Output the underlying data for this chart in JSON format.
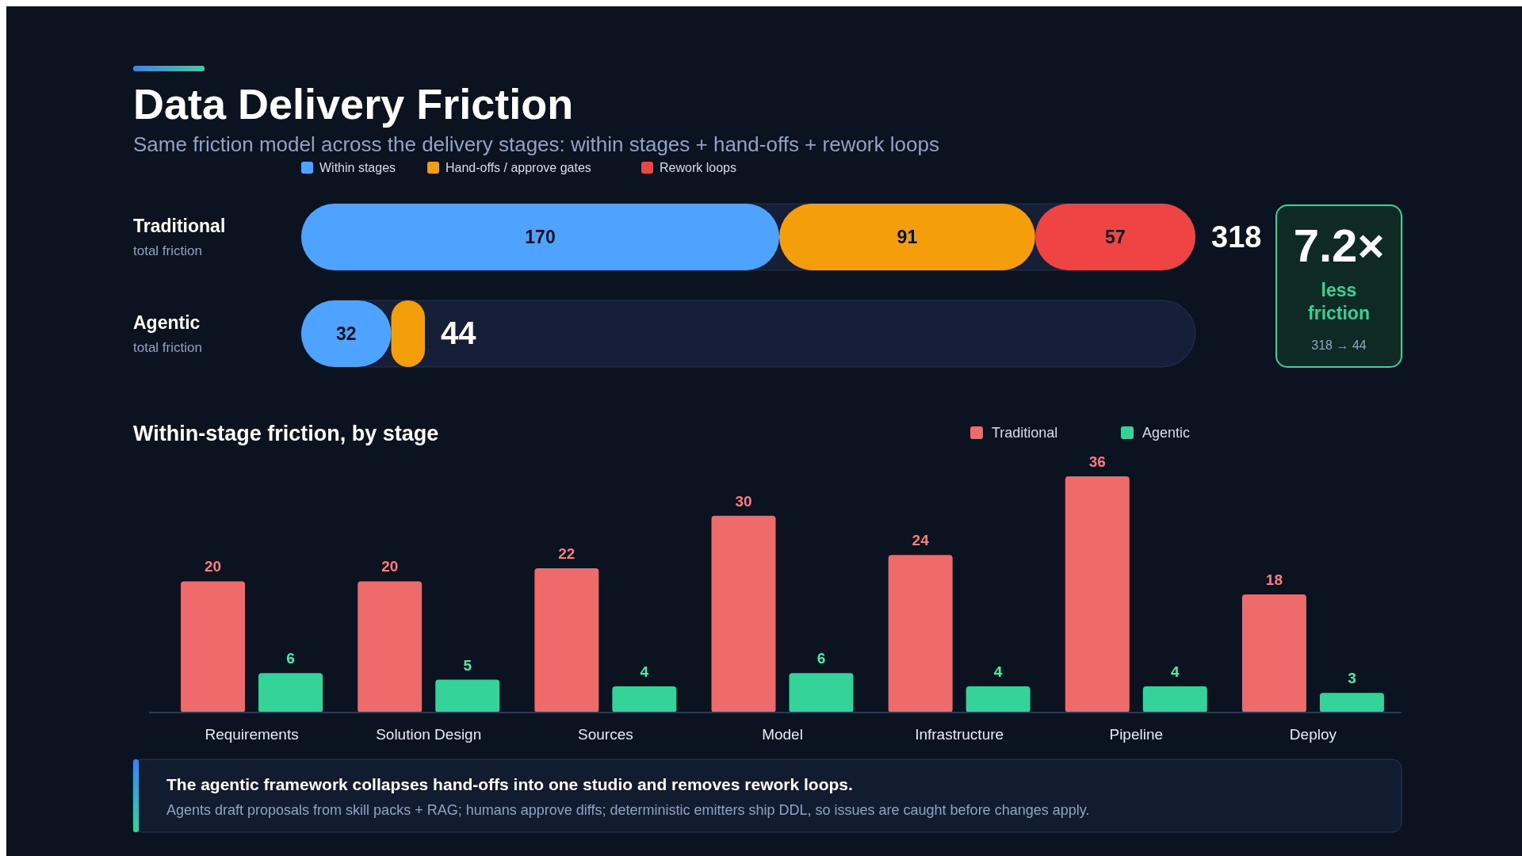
{
  "chart_data": [
    {
      "type": "bar",
      "orientation": "horizontal",
      "stacked": true,
      "title": "Data Delivery Friction",
      "subtitle": "Same friction model across the delivery stages: within stages + hand-offs + rework loops",
      "categories": [
        "Traditional",
        "Agentic"
      ],
      "series": [
        {
          "name": "Within stages",
          "color": "#4da3ff",
          "values": [
            170,
            32
          ],
          "value_labels": [
            "170",
            "32"
          ]
        },
        {
          "name": "Hand-offs / approve gates",
          "color": "#f59e0b",
          "values": [
            91,
            12
          ],
          "value_labels": [
            "91",
            null
          ]
        },
        {
          "name": "Rework loops",
          "color": "#ef4444",
          "values": [
            57,
            0
          ],
          "value_labels": [
            "57",
            null
          ]
        }
      ],
      "totals": [
        "318",
        "44"
      ],
      "legend": "top",
      "annotations": [
        "total friction",
        "total friction",
        "7.2×",
        "less friction",
        "318 → 44"
      ]
    },
    {
      "type": "bar",
      "title": "Within-stage friction, by stage",
      "categories": [
        "Requirements",
        "Solution Design",
        "Sources",
        "Model",
        "Infrastructure",
        "Pipeline",
        "Deploy"
      ],
      "series": [
        {
          "name": "Traditional",
          "color": "#ef6b6b",
          "values": [
            20,
            20,
            22,
            30,
            24,
            36,
            18
          ]
        },
        {
          "name": "Agentic",
          "color": "#34d399",
          "values": [
            6,
            5,
            4,
            6,
            4,
            4,
            3
          ]
        }
      ],
      "data_labels": true,
      "legend": "top right",
      "annotations": [
        "The agentic framework collapses hand-offs into one studio and removes rework loops.",
        "Agents draft proposals from skill packs + RAG; humans approve diffs; deterministic emitters ship DDL, so issues are caught before changes apply."
      ]
    }
  ]
}
